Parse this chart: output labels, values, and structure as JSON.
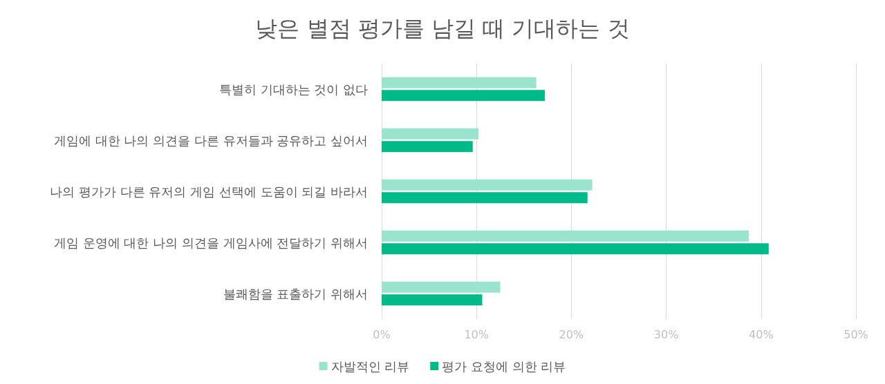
{
  "chart_data": {
    "type": "bar",
    "orientation": "horizontal",
    "title": "낮은 별점 평가를 남길 때 기대하는 것",
    "categories": [
      "특별히 기대하는 것이 없다",
      "게임에 대한 나의 의견을 다른 유저들과 공유하고 싶어서",
      "나의 평가가 다른 유저의 게임 선택에 도움이 되길 바라서",
      "게임 운영에 대한 나의 의견을 게임사에 전달하기 위해서",
      "불쾌함을 표출하기 위해서"
    ],
    "series": [
      {
        "name": "자발적인 리뷰",
        "color": "#9ae3cd",
        "values": [
          16.3,
          10.2,
          22.2,
          38.7,
          12.5
        ]
      },
      {
        "name": "평가 요청에 의한 리뷰",
        "color": "#00bb88",
        "values": [
          17.2,
          9.6,
          21.7,
          40.8,
          10.6
        ]
      }
    ],
    "xlim": [
      0,
      50
    ],
    "xticks": [
      {
        "value": 0,
        "label": "0%"
      },
      {
        "value": 10,
        "label": "10%"
      },
      {
        "value": 20,
        "label": "20%"
      },
      {
        "value": 30,
        "label": "30%"
      },
      {
        "value": 40,
        "label": "40%"
      },
      {
        "value": 50,
        "label": "50%"
      }
    ],
    "grid": "x",
    "legend": "bottom"
  }
}
